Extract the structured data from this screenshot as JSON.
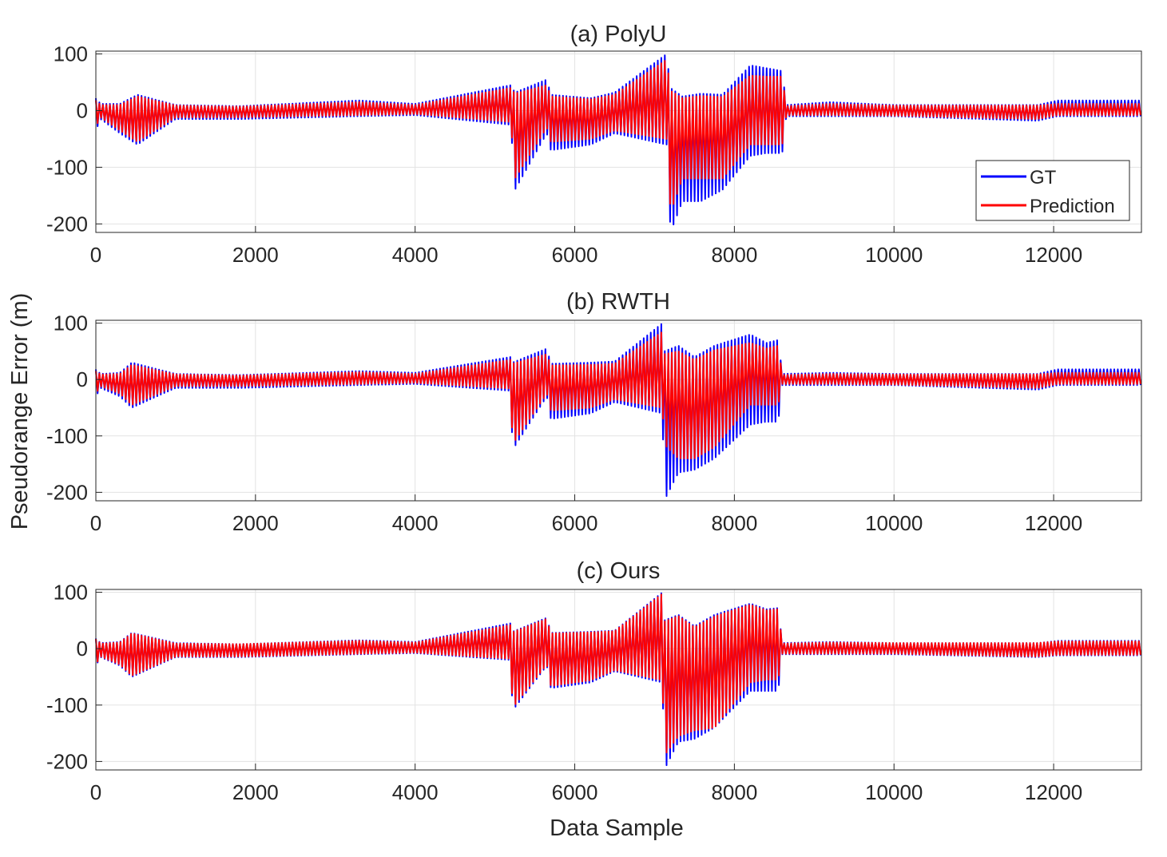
{
  "figure": {
    "shared_ylabel": "Pseudorange Error (m)",
    "shared_xlabel": "Data Sample"
  },
  "legend": {
    "placement": "bottom-right of panel (a)",
    "entries": [
      {
        "label": "GT",
        "color": "#0000ff"
      },
      {
        "label": "Prediction",
        "color": "#ff0000"
      }
    ]
  },
  "chart_data": [
    {
      "type": "line",
      "title": "(a) PolyU",
      "xlim": [
        0,
        13100
      ],
      "ylim": [
        -215,
        105
      ],
      "xticks": [
        0,
        2000,
        4000,
        6000,
        8000,
        10000,
        12000
      ],
      "yticks": [
        100,
        0,
        -100,
        -200
      ],
      "grid": true,
      "series": [
        {
          "name": "GT",
          "color": "#0000ff",
          "x": [
            0,
            60,
            300,
            520,
            1000,
            1800,
            3300,
            4000,
            5200,
            5250,
            5650,
            5700,
            6200,
            6500,
            7150,
            7200,
            7350,
            7580,
            7850,
            8200,
            8400,
            8600,
            8650,
            9200,
            10000,
            11800,
            12050,
            12500,
            13100
          ],
          "high": [
            22,
            12,
            12,
            28,
            10,
            8,
            18,
            12,
            45,
            32,
            55,
            28,
            22,
            32,
            100,
            40,
            25,
            30,
            28,
            80,
            75,
            70,
            10,
            15,
            10,
            10,
            18,
            18,
            18
          ],
          "low": [
            -35,
            -15,
            -40,
            -60,
            -15,
            -15,
            -10,
            -8,
            -25,
            -140,
            -40,
            -70,
            -60,
            -40,
            -60,
            -215,
            -160,
            -160,
            -140,
            -80,
            -75,
            -75,
            -10,
            -10,
            -10,
            -18,
            -10,
            -10,
            -10
          ]
        },
        {
          "name": "Prediction",
          "color": "#ff0000",
          "x": [
            0,
            60,
            300,
            520,
            1000,
            1800,
            3300,
            4000,
            5200,
            5250,
            5650,
            5700,
            6200,
            6500,
            7150,
            7200,
            7350,
            7580,
            7850,
            8200,
            8400,
            8600,
            8650,
            9200,
            10000,
            11800,
            12050,
            12500,
            13100
          ],
          "high": [
            18,
            10,
            10,
            25,
            9,
            7,
            15,
            10,
            40,
            30,
            45,
            25,
            20,
            28,
            90,
            35,
            22,
            26,
            24,
            62,
            60,
            60,
            8,
            12,
            9,
            9,
            12,
            12,
            12
          ],
          "low": [
            -28,
            -12,
            -35,
            -55,
            -12,
            -12,
            -8,
            -6,
            -20,
            -120,
            -30,
            -55,
            -50,
            -35,
            -50,
            -180,
            -120,
            -120,
            -120,
            -60,
            -60,
            -60,
            -8,
            -8,
            -9,
            -15,
            -8,
            -8,
            -8
          ]
        }
      ]
    },
    {
      "type": "line",
      "title": "(b) RWTH",
      "xlim": [
        0,
        13100
      ],
      "ylim": [
        -215,
        105
      ],
      "xticks": [
        0,
        2000,
        4000,
        6000,
        8000,
        10000,
        12000
      ],
      "yticks": [
        100,
        0,
        -100,
        -200
      ],
      "grid": true,
      "series": [
        {
          "name": "GT",
          "color": "#0000ff",
          "x": [
            0,
            60,
            300,
            450,
            1000,
            1800,
            3300,
            4000,
            5200,
            5220,
            5650,
            5700,
            6200,
            6500,
            7100,
            7120,
            7300,
            7500,
            7750,
            8200,
            8400,
            8550,
            8600,
            9200,
            10000,
            11800,
            12050,
            12500,
            13100
          ],
          "high": [
            18,
            10,
            12,
            30,
            10,
            8,
            15,
            12,
            40,
            30,
            55,
            28,
            30,
            32,
            100,
            50,
            60,
            40,
            60,
            80,
            65,
            70,
            10,
            12,
            10,
            10,
            18,
            18,
            18
          ],
          "low": [
            -30,
            -15,
            -30,
            -50,
            -15,
            -15,
            -10,
            -8,
            -20,
            -125,
            -30,
            -70,
            -60,
            -40,
            -60,
            -215,
            -165,
            -160,
            -140,
            -80,
            -75,
            -75,
            -10,
            -10,
            -10,
            -18,
            -10,
            -10,
            -10
          ]
        },
        {
          "name": "Prediction",
          "color": "#ff0000",
          "x": [
            0,
            60,
            300,
            450,
            1000,
            1800,
            3300,
            4000,
            5200,
            5220,
            5650,
            5700,
            6200,
            6500,
            7100,
            7120,
            7300,
            7500,
            7750,
            8200,
            8400,
            8550,
            8600,
            9200,
            10000,
            11800,
            12050,
            12500,
            13100
          ],
          "high": [
            15,
            9,
            10,
            26,
            9,
            7,
            13,
            10,
            35,
            28,
            45,
            25,
            26,
            28,
            85,
            45,
            50,
            35,
            52,
            65,
            55,
            60,
            8,
            10,
            9,
            9,
            12,
            12,
            12
          ],
          "low": [
            -25,
            -12,
            -25,
            -45,
            -12,
            -12,
            -8,
            -6,
            -16,
            -115,
            -25,
            -55,
            -50,
            -35,
            -50,
            -115,
            -140,
            -140,
            -120,
            -45,
            -45,
            -45,
            -8,
            -8,
            -9,
            -15,
            -8,
            -8,
            -8
          ]
        }
      ]
    },
    {
      "type": "line",
      "title": "(c) Ours",
      "xlim": [
        0,
        13100
      ],
      "ylim": [
        -215,
        105
      ],
      "xticks": [
        0,
        2000,
        4000,
        6000,
        8000,
        10000,
        12000
      ],
      "yticks": [
        100,
        0,
        -100,
        -200
      ],
      "grid": true,
      "series": [
        {
          "name": "GT",
          "color": "#0000ff",
          "x": [
            0,
            60,
            300,
            450,
            1000,
            1800,
            3300,
            4000,
            5200,
            5220,
            5650,
            5700,
            6200,
            6500,
            7100,
            7120,
            7300,
            7500,
            7750,
            8200,
            8400,
            8550,
            8600,
            9200,
            10000,
            11800,
            12050,
            12500,
            13100
          ],
          "high": [
            18,
            10,
            12,
            28,
            10,
            8,
            15,
            12,
            45,
            30,
            55,
            28,
            30,
            32,
            100,
            50,
            60,
            40,
            60,
            80,
            70,
            72,
            10,
            12,
            10,
            10,
            14,
            14,
            14
          ],
          "low": [
            -30,
            -15,
            -30,
            -50,
            -15,
            -15,
            -10,
            -8,
            -20,
            -110,
            -30,
            -70,
            -60,
            -40,
            -60,
            -215,
            -165,
            -160,
            -140,
            -75,
            -75,
            -75,
            -10,
            -10,
            -10,
            -15,
            -12,
            -12,
            -12
          ]
        },
        {
          "name": "Prediction",
          "color": "#ff0000",
          "x": [
            0,
            60,
            300,
            450,
            1000,
            1800,
            3300,
            4000,
            5200,
            5220,
            5650,
            5700,
            6200,
            6500,
            7100,
            7120,
            7300,
            7500,
            7750,
            8200,
            8400,
            8550,
            8600,
            9200,
            10000,
            11800,
            12050,
            12500,
            13100
          ],
          "high": [
            17,
            9,
            11,
            27,
            9,
            8,
            14,
            11,
            42,
            29,
            53,
            27,
            29,
            31,
            98,
            48,
            58,
            38,
            57,
            78,
            68,
            70,
            9,
            11,
            10,
            10,
            13,
            13,
            13
          ],
          "low": [
            -28,
            -14,
            -28,
            -48,
            -14,
            -14,
            -9,
            -7,
            -18,
            -105,
            -28,
            -66,
            -56,
            -38,
            -56,
            -190,
            -155,
            -145,
            -140,
            -60,
            -55,
            -55,
            -9,
            -9,
            -9,
            -14,
            -11,
            -11,
            -11
          ]
        }
      ]
    }
  ]
}
